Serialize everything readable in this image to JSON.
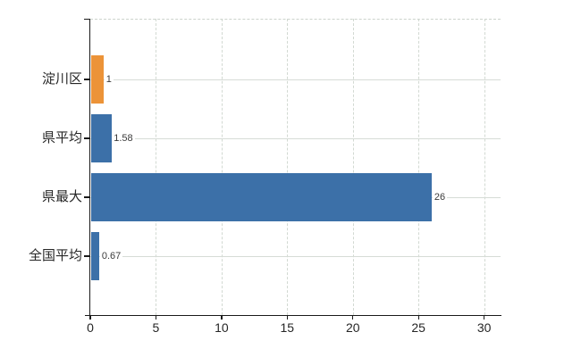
{
  "chart_data": {
    "type": "bar",
    "orientation": "horizontal",
    "title": "",
    "xlabel": "",
    "ylabel": "",
    "categories": [
      "淀川区",
      "県平均",
      "県最大",
      "全国平均"
    ],
    "values": [
      1,
      1.58,
      26,
      0.67
    ],
    "value_labels": [
      "1",
      "1.58",
      "26",
      "0.67"
    ],
    "bar_colors": [
      "#EC9338",
      "#3C70A8",
      "#3C70A8",
      "#3C70A8"
    ],
    "x_ticks": [
      "0",
      "5",
      "10",
      "15",
      "20",
      "25",
      "30"
    ],
    "x_tick_values": [
      0,
      5,
      10,
      15,
      20,
      25,
      30
    ],
    "xlim": [
      0,
      31.25
    ],
    "grid": true,
    "legend": null
  },
  "colors": {
    "bar_orange": "#EC9338",
    "bar_blue": "#3C70A8",
    "axis": "#1a1a1a",
    "gridline": "#d2d9d2",
    "tick_label": "#262626",
    "value_label": "#3b3b3b",
    "background": "#ffffff"
  }
}
